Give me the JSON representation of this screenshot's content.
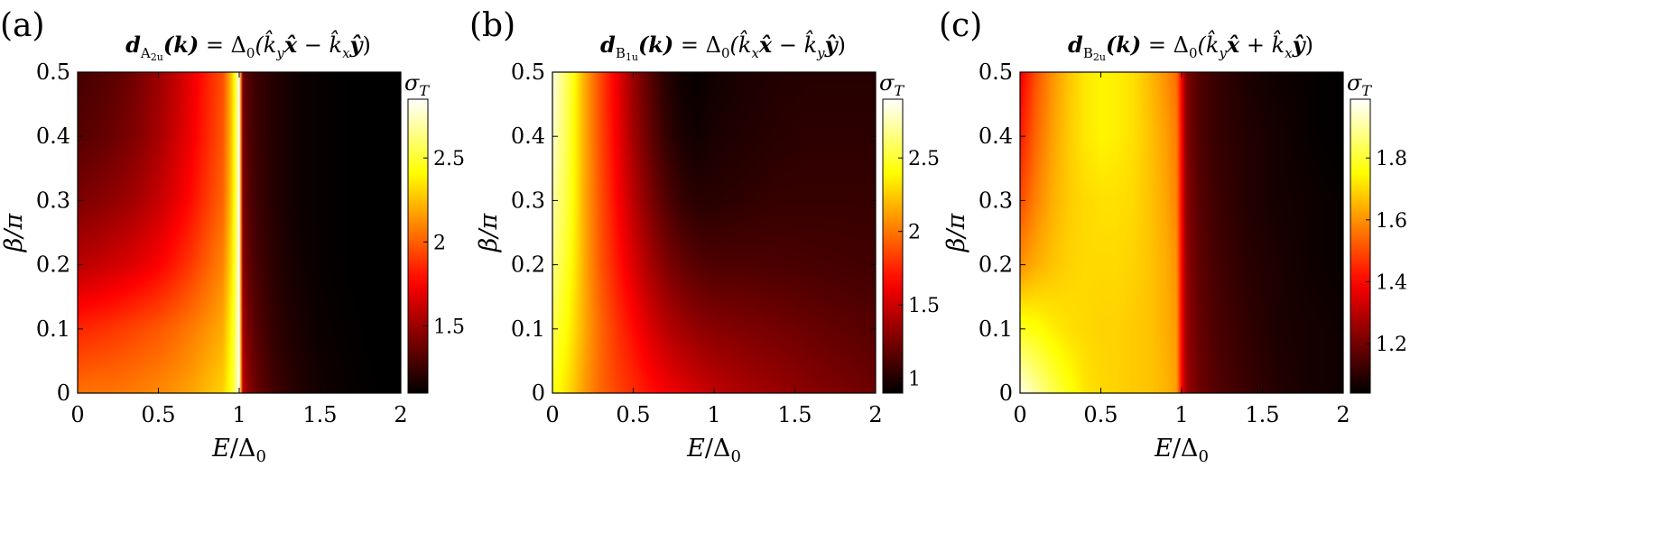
{
  "chart_data": [
    {
      "type": "heatmap",
      "panel_label": "(a)",
      "title": {
        "d": "d",
        "sub": "A",
        "subsub": "2u",
        "lhs_arg": "(k)",
        "eq": " = Δ",
        "eq_sub": "0",
        "rhs": "(k̂",
        "k1_sub": "y",
        "v1": "x̂",
        "op": " − k̂",
        "k2_sub": "x",
        "v2": "ŷ",
        "close": ")"
      },
      "xlabel": {
        "var": "E",
        "slash": "/Δ",
        "sub": "0"
      },
      "ylabel": {
        "var": "β",
        "rest": "/π"
      },
      "xlim": [
        0,
        2
      ],
      "ylim": [
        0,
        0.5
      ],
      "xticks": [
        "0",
        "0.5",
        "1",
        "1.5",
        "2"
      ],
      "yticks": [
        "0",
        "0.1",
        "0.2",
        "0.3",
        "0.4",
        "0.5"
      ],
      "colorbar": {
        "label": "σ",
        "label_sub": "T",
        "range": [
          1.1,
          2.85
        ],
        "ticks": [
          "1.5",
          "2",
          "2.5"
        ],
        "tick_values": [
          1.5,
          2,
          2.5
        ]
      },
      "colormap": "hot",
      "grid_y": [
        0,
        0.1,
        0.2,
        0.3,
        0.4,
        0.5
      ],
      "grid_x": [
        0,
        0.1,
        0.2,
        0.3,
        0.4,
        0.5,
        0.6,
        0.7,
        0.8,
        0.9,
        0.95,
        0.98,
        1.0,
        1.02,
        1.05,
        1.1,
        1.2,
        1.3,
        1.4,
        1.5,
        1.6,
        1.7,
        1.8,
        1.9,
        2.0
      ],
      "z": [
        [
          2.05,
          2.06,
          2.06,
          2.07,
          2.09,
          2.11,
          2.14,
          2.18,
          2.24,
          2.3,
          2.45,
          2.62,
          2.85,
          1.62,
          1.48,
          1.38,
          1.28,
          1.22,
          1.18,
          1.15,
          1.13,
          1.12,
          1.11,
          1.1,
          1.1
        ],
        [
          1.85,
          1.87,
          1.89,
          1.92,
          1.95,
          1.98,
          2.02,
          2.07,
          2.13,
          2.2,
          2.4,
          2.6,
          2.85,
          1.55,
          1.42,
          1.33,
          1.24,
          1.19,
          1.16,
          1.13,
          1.12,
          1.11,
          1.1,
          1.1,
          1.1
        ],
        [
          1.58,
          1.6,
          1.63,
          1.66,
          1.7,
          1.75,
          1.82,
          1.9,
          2.0,
          2.1,
          2.32,
          2.56,
          2.85,
          1.48,
          1.37,
          1.29,
          1.22,
          1.17,
          1.14,
          1.12,
          1.11,
          1.1,
          1.1,
          1.1,
          1.1
        ],
        [
          1.42,
          1.44,
          1.47,
          1.5,
          1.55,
          1.61,
          1.69,
          1.78,
          1.9,
          2.02,
          2.26,
          2.53,
          2.85,
          1.45,
          1.34,
          1.27,
          1.2,
          1.16,
          1.13,
          1.12,
          1.11,
          1.1,
          1.1,
          1.1,
          1.1
        ],
        [
          1.32,
          1.34,
          1.37,
          1.41,
          1.46,
          1.53,
          1.62,
          1.72,
          1.85,
          1.98,
          2.24,
          2.52,
          2.85,
          1.43,
          1.33,
          1.26,
          1.2,
          1.16,
          1.13,
          1.12,
          1.11,
          1.1,
          1.1,
          1.1,
          1.1
        ],
        [
          1.28,
          1.3,
          1.33,
          1.37,
          1.43,
          1.5,
          1.59,
          1.7,
          1.83,
          1.96,
          2.23,
          2.52,
          2.85,
          1.42,
          1.32,
          1.26,
          1.2,
          1.16,
          1.13,
          1.12,
          1.11,
          1.1,
          1.1,
          1.1,
          1.1
        ]
      ]
    },
    {
      "type": "heatmap",
      "panel_label": "(b)",
      "title": {
        "d": "d",
        "sub": "B",
        "subsub": "1u",
        "lhs_arg": "(k)",
        "eq": " = Δ",
        "eq_sub": "0",
        "rhs": "(k̂",
        "k1_sub": "x",
        "v1": "x̂",
        "op": " − k̂",
        "k2_sub": "y",
        "v2": "ŷ",
        "close": ")"
      },
      "xlabel": {
        "var": "E",
        "slash": "/Δ",
        "sub": "0"
      },
      "ylabel": {
        "var": "β",
        "rest": "/π"
      },
      "xlim": [
        0,
        2
      ],
      "ylim": [
        0,
        0.5
      ],
      "xticks": [
        "0",
        "0.5",
        "1",
        "1.5",
        "2"
      ],
      "yticks": [
        "0",
        "0.1",
        "0.2",
        "0.3",
        "0.4",
        "0.5"
      ],
      "colorbar": {
        "label": "σ",
        "label_sub": "T",
        "range": [
          0.9,
          2.9
        ],
        "ticks": [
          "1",
          "1.5",
          "2",
          "2.5"
        ],
        "tick_values": [
          1,
          1.5,
          2,
          2.5
        ]
      },
      "colormap": "hot",
      "grid_y": [
        0,
        0.1,
        0.2,
        0.3,
        0.4,
        0.5
      ],
      "grid_x": [
        0,
        0.1,
        0.2,
        0.3,
        0.4,
        0.5,
        0.6,
        0.7,
        0.8,
        0.9,
        1.0,
        1.2,
        1.4,
        1.6,
        1.8,
        2.0
      ],
      "z": [
        [
          2.45,
          2.3,
          2.1,
          1.95,
          1.85,
          1.78,
          1.7,
          1.63,
          1.57,
          1.52,
          1.47,
          1.4,
          1.35,
          1.3,
          1.26,
          1.22
        ],
        [
          2.55,
          2.38,
          2.15,
          1.95,
          1.8,
          1.68,
          1.55,
          1.45,
          1.38,
          1.33,
          1.3,
          1.27,
          1.24,
          1.21,
          1.18,
          1.15
        ],
        [
          2.65,
          2.45,
          2.15,
          1.9,
          1.72,
          1.55,
          1.4,
          1.28,
          1.2,
          1.15,
          1.13,
          1.13,
          1.12,
          1.11,
          1.1,
          1.09
        ],
        [
          2.72,
          2.5,
          2.15,
          1.88,
          1.66,
          1.45,
          1.28,
          1.15,
          1.06,
          1.02,
          1.02,
          1.04,
          1.06,
          1.06,
          1.06,
          1.06
        ],
        [
          2.8,
          2.52,
          2.15,
          1.86,
          1.62,
          1.38,
          1.2,
          1.06,
          0.98,
          0.95,
          0.98,
          1.0,
          1.02,
          1.03,
          1.03,
          1.03
        ],
        [
          2.85,
          2.55,
          2.15,
          1.85,
          1.6,
          1.35,
          1.16,
          1.02,
          0.94,
          0.92,
          0.95,
          0.98,
          1.0,
          1.01,
          1.01,
          1.01
        ]
      ]
    },
    {
      "type": "heatmap",
      "panel_label": "(c)",
      "title": {
        "d": "d",
        "sub": "B",
        "subsub": "2u",
        "lhs_arg": "(k)",
        "eq": " = Δ",
        "eq_sub": "0",
        "rhs": "(k̂",
        "k1_sub": "y",
        "v1": "x̂",
        "op": " + k̂",
        "k2_sub": "x",
        "v2": "ŷ",
        "close": ")"
      },
      "xlabel": {
        "var": "E",
        "slash": "/Δ",
        "sub": "0"
      },
      "ylabel": {
        "var": "β",
        "rest": "/π"
      },
      "xlim": [
        0,
        2
      ],
      "ylim": [
        0,
        0.5
      ],
      "xticks": [
        "0",
        "0.5",
        "1",
        "1.5",
        "2"
      ],
      "yticks": [
        "0",
        "0.1",
        "0.2",
        "0.3",
        "0.4",
        "0.5"
      ],
      "colorbar": {
        "label": "σ",
        "label_sub": "T",
        "range": [
          1.04,
          1.99
        ],
        "ticks": [
          "1.2",
          "1.4",
          "1.6",
          "1.8"
        ],
        "tick_values": [
          1.2,
          1.4,
          1.6,
          1.8
        ]
      },
      "colormap": "hot",
      "grid_y": [
        0,
        0.1,
        0.2,
        0.3,
        0.4,
        0.5
      ],
      "grid_x": [
        0,
        0.1,
        0.2,
        0.3,
        0.4,
        0.5,
        0.6,
        0.7,
        0.8,
        0.9,
        0.97,
        1.0,
        1.03,
        1.1,
        1.2,
        1.4,
        1.6,
        1.8,
        2.0
      ],
      "z": [
        [
          1.97,
          1.9,
          1.83,
          1.77,
          1.72,
          1.7,
          1.69,
          1.68,
          1.67,
          1.65,
          1.62,
          1.4,
          1.26,
          1.2,
          1.16,
          1.12,
          1.09,
          1.07,
          1.06
        ],
        [
          1.78,
          1.76,
          1.73,
          1.71,
          1.7,
          1.69,
          1.69,
          1.68,
          1.67,
          1.64,
          1.61,
          1.4,
          1.25,
          1.19,
          1.15,
          1.11,
          1.08,
          1.07,
          1.06
        ],
        [
          1.6,
          1.64,
          1.67,
          1.69,
          1.7,
          1.7,
          1.7,
          1.69,
          1.67,
          1.64,
          1.6,
          1.4,
          1.24,
          1.18,
          1.14,
          1.1,
          1.08,
          1.06,
          1.05
        ],
        [
          1.5,
          1.58,
          1.64,
          1.68,
          1.7,
          1.71,
          1.71,
          1.7,
          1.67,
          1.63,
          1.58,
          1.4,
          1.23,
          1.17,
          1.13,
          1.09,
          1.07,
          1.06,
          1.05
        ],
        [
          1.43,
          1.54,
          1.62,
          1.68,
          1.72,
          1.74,
          1.73,
          1.71,
          1.67,
          1.62,
          1.57,
          1.4,
          1.22,
          1.16,
          1.12,
          1.09,
          1.07,
          1.05,
          1.04
        ],
        [
          1.38,
          1.51,
          1.6,
          1.67,
          1.72,
          1.74,
          1.73,
          1.71,
          1.66,
          1.6,
          1.55,
          1.39,
          1.22,
          1.16,
          1.12,
          1.08,
          1.06,
          1.05,
          1.04
        ]
      ]
    }
  ]
}
